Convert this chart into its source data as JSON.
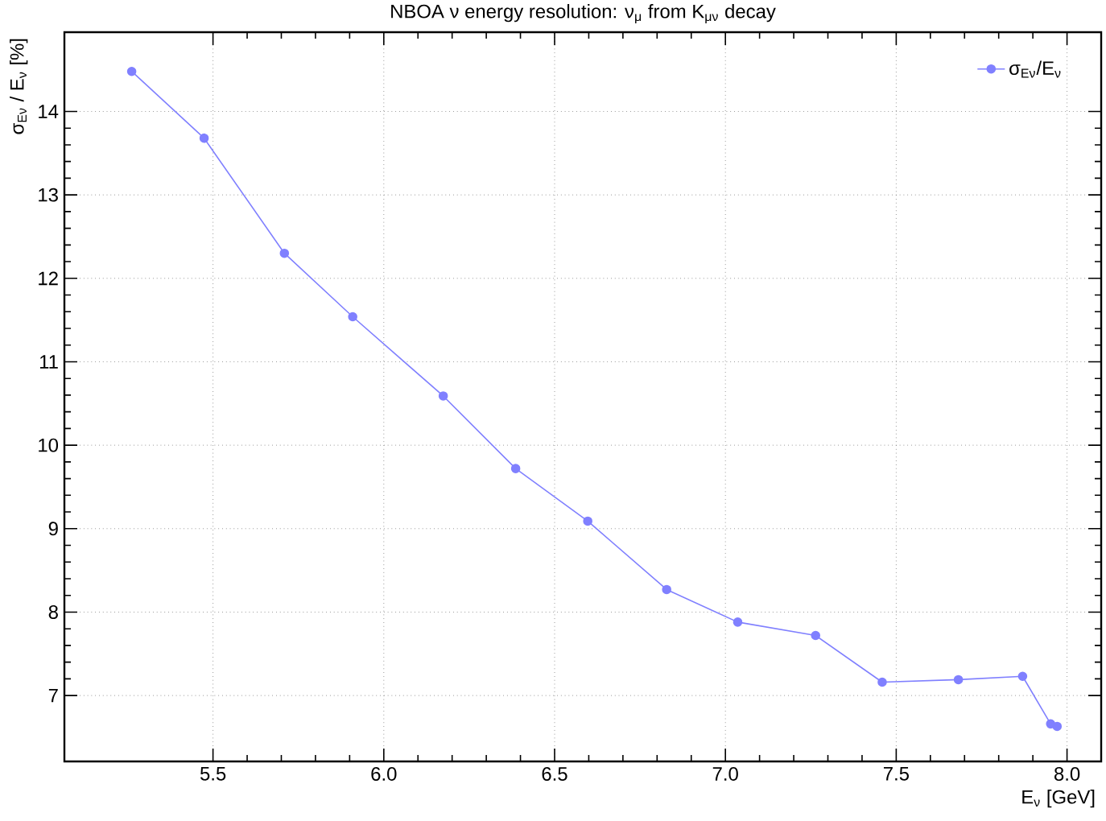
{
  "chart_data": {
    "type": "line",
    "title": "NBOA ν energy resolution: ν$_{μ}$ from K$_{μν}$ decay",
    "xlabel": "E$_{ν}$ [GeV]",
    "ylabel": "σ$_{Eν}$ / E$_{ν}$ [%]",
    "x": [
      5.262,
      5.474,
      5.709,
      5.909,
      6.174,
      6.386,
      6.597,
      6.828,
      7.036,
      7.264,
      7.459,
      7.682,
      7.87,
      7.952,
      7.971
    ],
    "series": [
      {
        "name": "σ$_{Eν}$/E$_{ν}$",
        "color": "#8080ff",
        "values": [
          14.48,
          13.68,
          12.3,
          11.54,
          10.59,
          9.72,
          9.09,
          8.27,
          7.88,
          7.72,
          7.16,
          7.19,
          7.23,
          6.66,
          6.63
        ]
      }
    ],
    "xlim": [
      5.065,
      8.1
    ],
    "ylim": [
      6.21,
      14.95
    ],
    "xticks": [
      {
        "value": 5.5,
        "label": "5.5"
      },
      {
        "value": 6.0,
        "label": "6.0"
      },
      {
        "value": 6.5,
        "label": "6.5"
      },
      {
        "value": 7.0,
        "label": "7.0"
      },
      {
        "value": 7.5,
        "label": "7.5"
      },
      {
        "value": 8.0,
        "label": "8.0"
      }
    ],
    "yticks": [
      7,
      8,
      9,
      10,
      11,
      12,
      13,
      14
    ],
    "grid": true,
    "legend": "top right",
    "marker": "circle",
    "line_style": "solid"
  }
}
